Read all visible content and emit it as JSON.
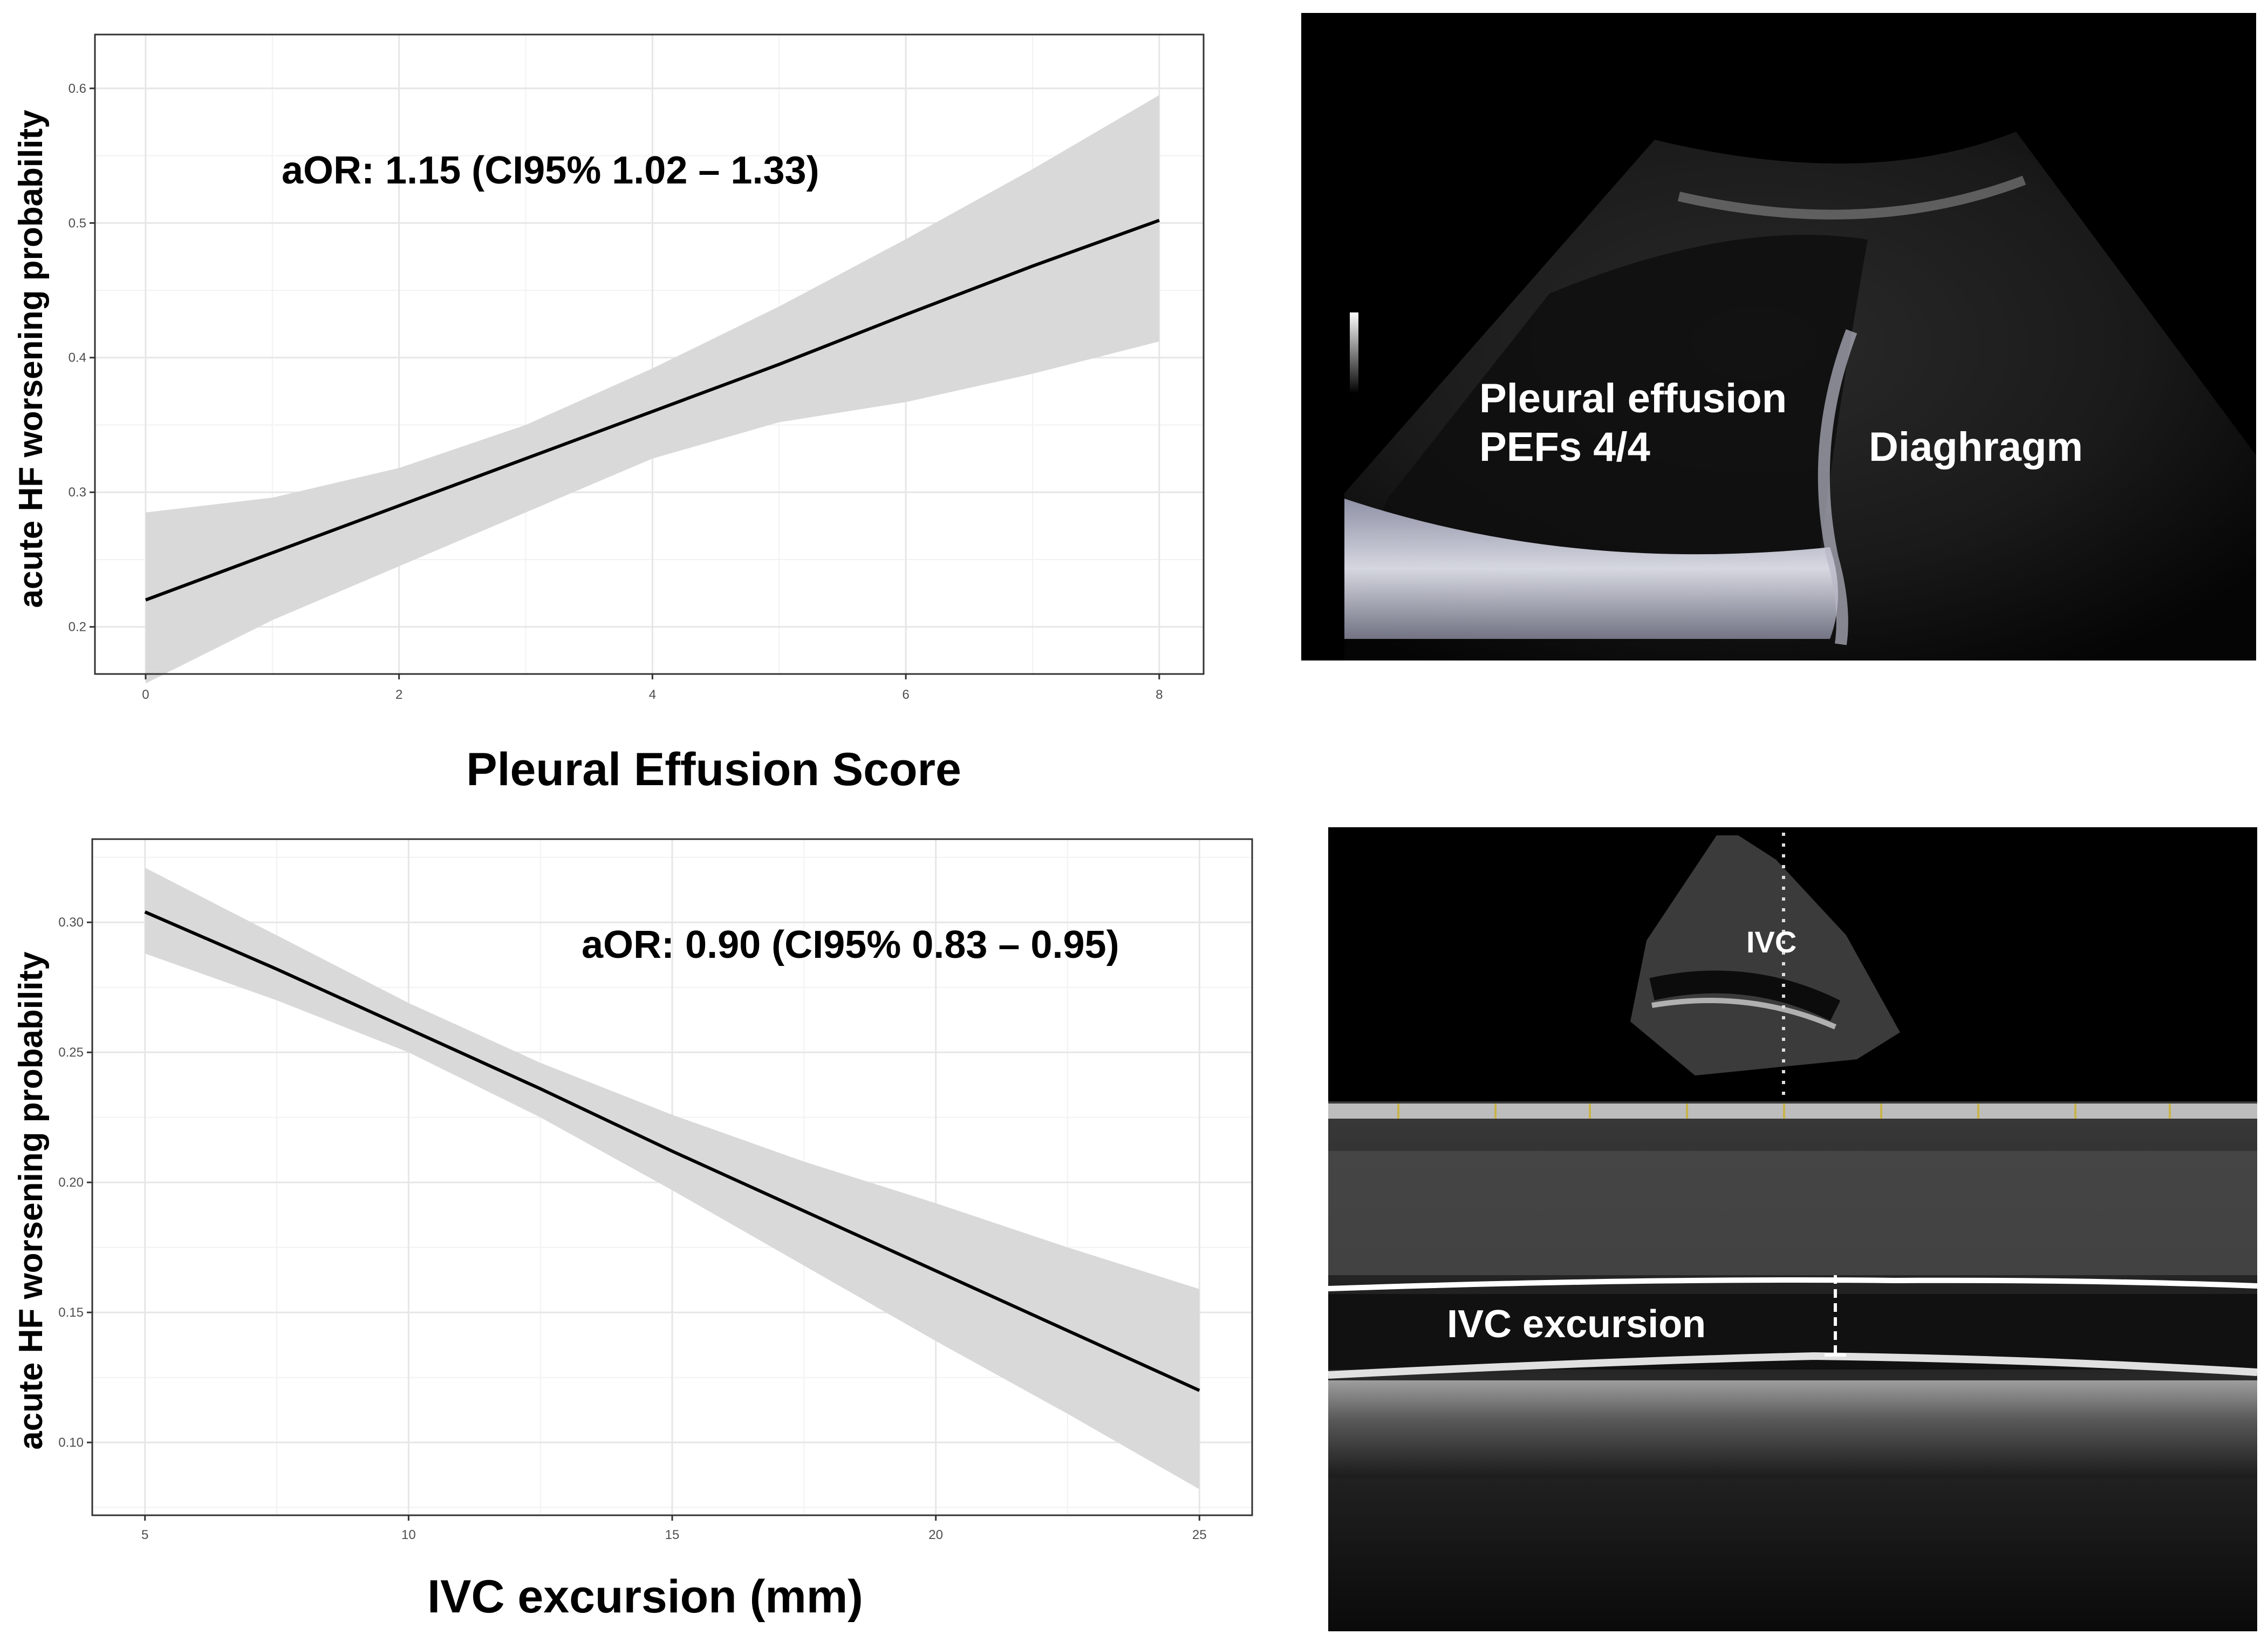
{
  "chart_data": [
    {
      "type": "line",
      "xlabel": "Pleural Effusion Score",
      "ylabel": "acute HF worsening probability",
      "annotation": "aOR: 1.15 (CI95% 1.02 – 1.33)",
      "xlim": [
        -0.4,
        8.35
      ],
      "ylim": [
        0.165,
        0.64
      ],
      "xticks": [
        0,
        2,
        4,
        6,
        8
      ],
      "yticks": [
        0.2,
        0.3,
        0.4,
        0.5,
        0.6
      ],
      "ytick_labels": [
        "0.2",
        "0.3",
        "0.4",
        "0.5",
        "0.6"
      ],
      "grid": true,
      "series": [
        {
          "x": [
            0,
            1,
            2,
            3,
            4,
            5,
            6,
            7,
            8
          ],
          "y": [
            0.22,
            0.255,
            0.29,
            0.325,
            0.36,
            0.395,
            0.432,
            0.468,
            0.502
          ],
          "ci_lower": [
            0.158,
            0.205,
            0.245,
            0.285,
            0.325,
            0.352,
            0.367,
            0.388,
            0.412
          ],
          "ci_upper": [
            0.285,
            0.296,
            0.318,
            0.35,
            0.392,
            0.438,
            0.488,
            0.54,
            0.595
          ]
        }
      ]
    },
    {
      "type": "line",
      "xlabel": "IVC excursion (mm)",
      "ylabel": "acute HF worsening probability",
      "annotation": "aOR: 0.90 (CI95% 0.83 – 0.95)",
      "xlim": [
        4.0,
        26.0
      ],
      "ylim": [
        0.072,
        0.332
      ],
      "xticks": [
        5,
        10,
        15,
        20,
        25
      ],
      "yticks": [
        0.1,
        0.15,
        0.2,
        0.25,
        0.3
      ],
      "ytick_labels": [
        "0.10",
        "0.15",
        "0.20",
        "0.25",
        "0.30"
      ],
      "grid": true,
      "series": [
        {
          "x": [
            5,
            7.5,
            10,
            12.5,
            15,
            17.5,
            20,
            22.5,
            25
          ],
          "y": [
            0.304,
            0.282,
            0.259,
            0.236,
            0.212,
            0.189,
            0.166,
            0.143,
            0.12
          ],
          "ci_lower": [
            0.288,
            0.27,
            0.25,
            0.225,
            0.197,
            0.168,
            0.139,
            0.111,
            0.082
          ],
          "ci_upper": [
            0.321,
            0.295,
            0.269,
            0.246,
            0.226,
            0.208,
            0.192,
            0.175,
            0.159
          ]
        }
      ]
    }
  ],
  "ultrasound_top": {
    "label_line1": "Pleural effusion",
    "label_line2": "PEFs 4/4",
    "label_right": "Diaghragm"
  },
  "ultrasound_bottom": {
    "label_top": "IVC",
    "label_mmode": "IVC excursion"
  }
}
